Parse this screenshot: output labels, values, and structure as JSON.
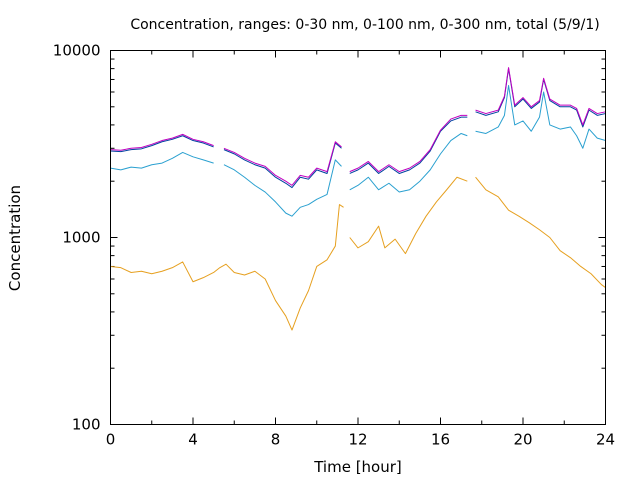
{
  "chart_data": {
    "type": "line",
    "title": "Concentration, ranges: 0-30 nm, 0-100 nm, 0-300 nm, total (5/9/1)",
    "xlabel": "Time [hour]",
    "ylabel": "Concentration",
    "xlim": [
      0,
      24
    ],
    "ylim": [
      100,
      10000
    ],
    "yscale": "log",
    "grid": false,
    "x_ticks": [
      0,
      4,
      8,
      12,
      16,
      20,
      24
    ],
    "x_tick_labels": [
      "0",
      "4",
      "8",
      "12",
      "16",
      "20",
      "24"
    ],
    "y_ticks": [
      100,
      1000,
      10000
    ],
    "y_tick_labels": [
      "100",
      "1000",
      "10000"
    ],
    "series": [
      {
        "color": "#e6a020",
        "points": [
          [
            0,
            700
          ],
          [
            0.5,
            690
          ],
          [
            1,
            650
          ],
          [
            1.5,
            660
          ],
          [
            2,
            640
          ],
          [
            2.5,
            660
          ],
          [
            3,
            690
          ],
          [
            3.5,
            740
          ],
          [
            4,
            580
          ],
          [
            4.5,
            610
          ],
          [
            5,
            650
          ],
          [
            5.3,
            690
          ],
          [
            5.6,
            720
          ],
          [
            6,
            650
          ],
          [
            6.5,
            630
          ],
          [
            7,
            660
          ],
          [
            7.5,
            600
          ],
          [
            8,
            460
          ],
          [
            8.5,
            380
          ],
          [
            8.8,
            320
          ],
          [
            9.2,
            420
          ],
          [
            9.6,
            520
          ],
          [
            10,
            700
          ],
          [
            10.5,
            760
          ],
          [
            10.9,
            900
          ],
          [
            11.1,
            1500
          ],
          [
            11.3,
            1450
          ],
          [
            11.5,
            null
          ],
          [
            11.6,
            1000
          ],
          [
            12,
            880
          ],
          [
            12.5,
            950
          ],
          [
            13,
            1150
          ],
          [
            13.3,
            880
          ],
          [
            13.8,
            980
          ],
          [
            14.3,
            820
          ],
          [
            14.8,
            1050
          ],
          [
            15.3,
            1300
          ],
          [
            15.8,
            1550
          ],
          [
            16.3,
            1800
          ],
          [
            16.8,
            2100
          ],
          [
            17.3,
            2000
          ],
          [
            17.5,
            null
          ],
          [
            17.7,
            2100
          ],
          [
            18.2,
            1800
          ],
          [
            18.8,
            1650
          ],
          [
            19.3,
            1400
          ],
          [
            19.8,
            1300
          ],
          [
            20.3,
            1200
          ],
          [
            20.8,
            1100
          ],
          [
            21.3,
            1000
          ],
          [
            21.8,
            850
          ],
          [
            22.3,
            780
          ],
          [
            22.8,
            700
          ],
          [
            23.3,
            640
          ],
          [
            23.8,
            560
          ],
          [
            24,
            540
          ]
        ]
      },
      {
        "color": "#2aa0d0",
        "points": [
          [
            0,
            2350
          ],
          [
            0.5,
            2300
          ],
          [
            1,
            2380
          ],
          [
            1.5,
            2350
          ],
          [
            2,
            2450
          ],
          [
            2.5,
            2500
          ],
          [
            3,
            2650
          ],
          [
            3.5,
            2850
          ],
          [
            4,
            2700
          ],
          [
            4.5,
            2600
          ],
          [
            5,
            2500
          ],
          [
            5.3,
            null
          ],
          [
            5.5,
            2450
          ],
          [
            6,
            2300
          ],
          [
            6.5,
            2100
          ],
          [
            7,
            1900
          ],
          [
            7.5,
            1750
          ],
          [
            8,
            1550
          ],
          [
            8.5,
            1350
          ],
          [
            8.8,
            1300
          ],
          [
            9.2,
            1450
          ],
          [
            9.6,
            1500
          ],
          [
            10,
            1600
          ],
          [
            10.5,
            1700
          ],
          [
            10.9,
            2600
          ],
          [
            11.2,
            2400
          ],
          [
            11.5,
            null
          ],
          [
            11.6,
            1800
          ],
          [
            12,
            1900
          ],
          [
            12.5,
            2100
          ],
          [
            13,
            1800
          ],
          [
            13.5,
            1950
          ],
          [
            14,
            1750
          ],
          [
            14.5,
            1800
          ],
          [
            15,
            2000
          ],
          [
            15.5,
            2300
          ],
          [
            16,
            2800
          ],
          [
            16.5,
            3300
          ],
          [
            17,
            3600
          ],
          [
            17.3,
            3500
          ],
          [
            17.5,
            null
          ],
          [
            17.7,
            3700
          ],
          [
            18.2,
            3600
          ],
          [
            18.8,
            3900
          ],
          [
            19.1,
            4500
          ],
          [
            19.3,
            6500
          ],
          [
            19.6,
            4000
          ],
          [
            20,
            4200
          ],
          [
            20.4,
            3700
          ],
          [
            20.8,
            4400
          ],
          [
            21,
            6000
          ],
          [
            21.3,
            4000
          ],
          [
            21.8,
            3800
          ],
          [
            22.3,
            3900
          ],
          [
            22.6,
            3500
          ],
          [
            22.9,
            3000
          ],
          [
            23.2,
            3800
          ],
          [
            23.6,
            3400
          ],
          [
            24,
            3300
          ]
        ]
      },
      {
        "color": "#0040a0",
        "points": [
          [
            0,
            2900
          ],
          [
            0.5,
            2880
          ],
          [
            1,
            2950
          ],
          [
            1.5,
            2980
          ],
          [
            2,
            3100
          ],
          [
            2.5,
            3250
          ],
          [
            3,
            3350
          ],
          [
            3.5,
            3500
          ],
          [
            4,
            3300
          ],
          [
            4.5,
            3200
          ],
          [
            5,
            3050
          ],
          [
            5.3,
            null
          ],
          [
            5.5,
            2950
          ],
          [
            6,
            2800
          ],
          [
            6.5,
            2600
          ],
          [
            7,
            2450
          ],
          [
            7.5,
            2350
          ],
          [
            8,
            2100
          ],
          [
            8.5,
            1950
          ],
          [
            8.8,
            1850
          ],
          [
            9.2,
            2100
          ],
          [
            9.6,
            2050
          ],
          [
            10,
            2300
          ],
          [
            10.5,
            2200
          ],
          [
            10.9,
            3200
          ],
          [
            11.2,
            3000
          ],
          [
            11.5,
            null
          ],
          [
            11.6,
            2200
          ],
          [
            12,
            2300
          ],
          [
            12.5,
            2500
          ],
          [
            13,
            2200
          ],
          [
            13.5,
            2400
          ],
          [
            14,
            2200
          ],
          [
            14.5,
            2300
          ],
          [
            15,
            2500
          ],
          [
            15.5,
            2900
          ],
          [
            16,
            3700
          ],
          [
            16.5,
            4200
          ],
          [
            17,
            4400
          ],
          [
            17.3,
            4400
          ],
          [
            17.5,
            null
          ],
          [
            17.7,
            4700
          ],
          [
            18.2,
            4500
          ],
          [
            18.8,
            4700
          ],
          [
            19.1,
            5600
          ],
          [
            19.3,
            8000
          ],
          [
            19.6,
            5000
          ],
          [
            20,
            5500
          ],
          [
            20.4,
            4900
          ],
          [
            20.8,
            5300
          ],
          [
            21,
            7000
          ],
          [
            21.3,
            5400
          ],
          [
            21.8,
            5000
          ],
          [
            22.3,
            5000
          ],
          [
            22.6,
            4800
          ],
          [
            22.9,
            3900
          ],
          [
            23.2,
            4800
          ],
          [
            23.6,
            4500
          ],
          [
            24,
            4600
          ]
        ]
      },
      {
        "color": "#c000c0",
        "points": [
          [
            0,
            2950
          ],
          [
            0.5,
            2930
          ],
          [
            1,
            3000
          ],
          [
            1.5,
            3030
          ],
          [
            2,
            3150
          ],
          [
            2.5,
            3300
          ],
          [
            3,
            3400
          ],
          [
            3.5,
            3560
          ],
          [
            4,
            3350
          ],
          [
            4.5,
            3250
          ],
          [
            5,
            3100
          ],
          [
            5.3,
            null
          ],
          [
            5.5,
            3000
          ],
          [
            6,
            2850
          ],
          [
            6.5,
            2650
          ],
          [
            7,
            2500
          ],
          [
            7.5,
            2400
          ],
          [
            8,
            2150
          ],
          [
            8.5,
            2000
          ],
          [
            8.8,
            1900
          ],
          [
            9.2,
            2150
          ],
          [
            9.6,
            2100
          ],
          [
            10,
            2350
          ],
          [
            10.5,
            2250
          ],
          [
            10.9,
            3250
          ],
          [
            11.2,
            3050
          ],
          [
            11.5,
            null
          ],
          [
            11.6,
            2250
          ],
          [
            12,
            2350
          ],
          [
            12.5,
            2550
          ],
          [
            13,
            2250
          ],
          [
            13.5,
            2450
          ],
          [
            14,
            2250
          ],
          [
            14.5,
            2350
          ],
          [
            15,
            2550
          ],
          [
            15.5,
            2950
          ],
          [
            16,
            3750
          ],
          [
            16.5,
            4300
          ],
          [
            17,
            4500
          ],
          [
            17.3,
            4500
          ],
          [
            17.5,
            null
          ],
          [
            17.7,
            4800
          ],
          [
            18.2,
            4600
          ],
          [
            18.8,
            4800
          ],
          [
            19.1,
            5700
          ],
          [
            19.3,
            8100
          ],
          [
            19.6,
            5100
          ],
          [
            20,
            5600
          ],
          [
            20.4,
            5000
          ],
          [
            20.8,
            5400
          ],
          [
            21,
            7100
          ],
          [
            21.3,
            5500
          ],
          [
            21.8,
            5100
          ],
          [
            22.3,
            5100
          ],
          [
            22.6,
            4900
          ],
          [
            22.9,
            4000
          ],
          [
            23.2,
            4900
          ],
          [
            23.6,
            4600
          ],
          [
            24,
            4700
          ]
        ]
      }
    ]
  }
}
